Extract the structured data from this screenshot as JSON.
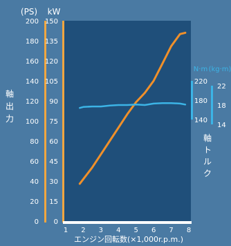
{
  "chart_data": {
    "type": "line",
    "xlabel": "エンジン回転数(×1,000r.p.m.)",
    "x_ticks": [
      "1",
      "2",
      "3",
      "4",
      "5",
      "6",
      "7",
      "8"
    ],
    "xlim": [
      1,
      8
    ],
    "axis_power_ps": {
      "unit": "(PS)",
      "ticks": [
        "0",
        "20",
        "40",
        "60",
        "80",
        "100",
        "120",
        "140",
        "160",
        "180",
        "200"
      ],
      "range": [
        0,
        200
      ]
    },
    "axis_power_kw": {
      "unit": "kW",
      "ticks": [
        "0",
        "15",
        "30",
        "45",
        "60",
        "75",
        "90",
        "105",
        "120",
        "135",
        "150"
      ],
      "range": [
        0,
        150
      ]
    },
    "left_axis_title": [
      "軸",
      "出",
      "力"
    ],
    "axis_torque_nm": {
      "unit": "N·m",
      "ticks": [
        "140",
        "180",
        "220"
      ],
      "range": [
        140,
        220
      ]
    },
    "axis_torque_kgm": {
      "unit": "(kg·m)",
      "ticks": [
        "14",
        "18",
        "22"
      ],
      "range": [
        14,
        22
      ]
    },
    "right_axis_title": [
      "軸",
      "ト",
      "ル",
      "ク"
    ],
    "series": [
      {
        "color": "#f0902a",
        "axis": "kW",
        "x": [
          1.8,
          2.5,
          3.0,
          3.5,
          4.0,
          4.5,
          5.0,
          5.5,
          6.0,
          6.5,
          7.0,
          7.5,
          7.8
        ],
        "y": [
          28,
          40,
          50,
          60,
          70,
          80,
          89,
          96,
          105,
          118,
          131,
          140,
          141
        ]
      },
      {
        "color": "#3cb4e6",
        "axis": "N·m",
        "x": [
          1.8,
          2.0,
          2.5,
          3.0,
          3.5,
          4.0,
          4.5,
          5.0,
          5.5,
          6.0,
          6.5,
          7.0,
          7.5,
          7.8
        ],
        "y": [
          164,
          166,
          167,
          167,
          169,
          170,
          170,
          171,
          170,
          173,
          174,
          174,
          173,
          171
        ]
      }
    ]
  }
}
